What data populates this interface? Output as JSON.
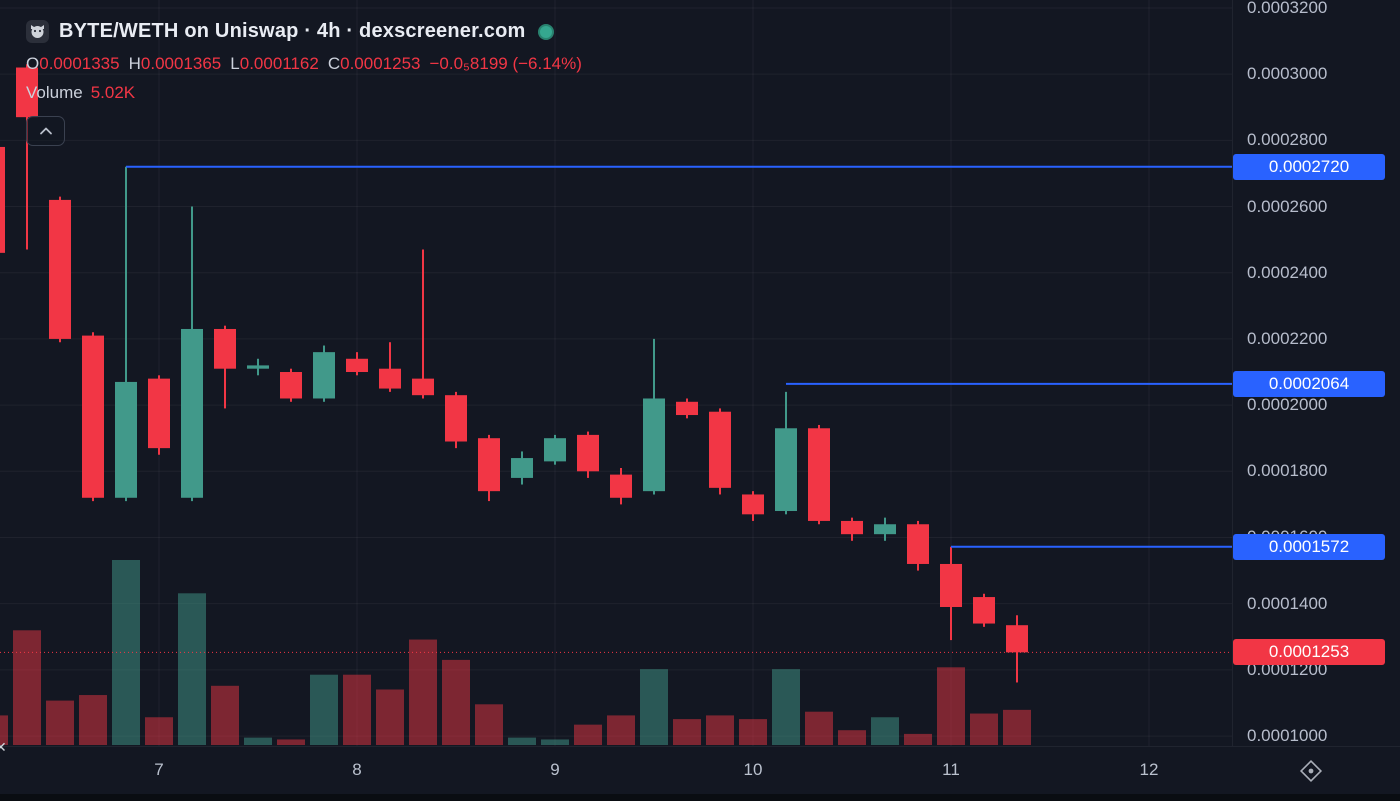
{
  "legend": {
    "title": "BYTE/WETH on Uniswap · 4h · dexscreener.com",
    "ohlc": [
      {
        "label": "O",
        "value": "0.0001335"
      },
      {
        "label": "H",
        "value": "0.0001365"
      },
      {
        "label": "L",
        "value": "0.0001162"
      },
      {
        "label": "C",
        "value": "0.0001253"
      }
    ],
    "change": "−0.0₅8199 (−6.14%)",
    "volume_label": "Volume",
    "volume_value": "5.02K"
  },
  "chart_data": {
    "type": "candlestick",
    "title": "BYTE/WETH on Uniswap · 4h · dexscreener.com",
    "ylim": [
      9.7e-05,
      0.0003224
    ],
    "price_ticks": [
      {
        "price": 0.00032,
        "label": "0.0003200"
      },
      {
        "price": 0.0003,
        "label": "0.0003000"
      },
      {
        "price": 0.00028,
        "label": "0.0002800"
      },
      {
        "price": 0.00026,
        "label": "0.0002600"
      },
      {
        "price": 0.00024,
        "label": "0.0002400"
      },
      {
        "price": 0.00022,
        "label": "0.0002200"
      },
      {
        "price": 0.0002,
        "label": "0.0002000"
      },
      {
        "price": 0.00018,
        "label": "0.0001800"
      },
      {
        "price": 0.00016,
        "label": "0.0001600"
      },
      {
        "price": 0.00014,
        "label": "0.0001400"
      },
      {
        "price": 0.00012,
        "label": "0.0001200"
      },
      {
        "price": 0.0001,
        "label": "0.0001000"
      }
    ],
    "time_ticks": [
      {
        "index": 5,
        "label": "7"
      },
      {
        "index": 11,
        "label": "8"
      },
      {
        "index": 17,
        "label": "9"
      },
      {
        "index": 23,
        "label": "10"
      },
      {
        "index": 29,
        "label": "11"
      },
      {
        "index": 35,
        "label": "12"
      }
    ],
    "candles": [
      {
        "o": 0.000278,
        "h": 0.00028,
        "l": 0.000245,
        "c": 0.000246
      },
      {
        "o": 0.000302,
        "h": 0.000303,
        "l": 0.000247,
        "c": 0.000287
      },
      {
        "o": 0.000262,
        "h": 0.000263,
        "l": 0.000219,
        "c": 0.00022
      },
      {
        "o": 0.000221,
        "h": 0.000222,
        "l": 0.000171,
        "c": 0.000172
      },
      {
        "o": 0.000172,
        "h": 0.000272,
        "l": 0.000171,
        "c": 0.000207
      },
      {
        "o": 0.000208,
        "h": 0.000209,
        "l": 0.000185,
        "c": 0.000187
      },
      {
        "o": 0.000172,
        "h": 0.00026,
        "l": 0.000171,
        "c": 0.000223
      },
      {
        "o": 0.000223,
        "h": 0.000224,
        "l": 0.000199,
        "c": 0.000211
      },
      {
        "o": 0.000211,
        "h": 0.000214,
        "l": 0.000209,
        "c": 0.000212
      },
      {
        "o": 0.00021,
        "h": 0.000211,
        "l": 0.000201,
        "c": 0.000202
      },
      {
        "o": 0.000202,
        "h": 0.000218,
        "l": 0.000201,
        "c": 0.000216
      },
      {
        "o": 0.000214,
        "h": 0.000216,
        "l": 0.000209,
        "c": 0.00021
      },
      {
        "o": 0.000211,
        "h": 0.000219,
        "l": 0.000204,
        "c": 0.000205
      },
      {
        "o": 0.000208,
        "h": 0.000247,
        "l": 0.000202,
        "c": 0.000203
      },
      {
        "o": 0.000203,
        "h": 0.000204,
        "l": 0.000187,
        "c": 0.000189
      },
      {
        "o": 0.00019,
        "h": 0.000191,
        "l": 0.000171,
        "c": 0.000174
      },
      {
        "o": 0.000178,
        "h": 0.000186,
        "l": 0.000176,
        "c": 0.000184
      },
      {
        "o": 0.000183,
        "h": 0.000191,
        "l": 0.000182,
        "c": 0.00019
      },
      {
        "o": 0.000191,
        "h": 0.000192,
        "l": 0.000178,
        "c": 0.00018
      },
      {
        "o": 0.000179,
        "h": 0.000181,
        "l": 0.00017,
        "c": 0.000172
      },
      {
        "o": 0.000174,
        "h": 0.00022,
        "l": 0.000173,
        "c": 0.000202
      },
      {
        "o": 0.000201,
        "h": 0.000202,
        "l": 0.000196,
        "c": 0.000197
      },
      {
        "o": 0.000198,
        "h": 0.000199,
        "l": 0.000173,
        "c": 0.000175
      },
      {
        "o": 0.000173,
        "h": 0.000174,
        "l": 0.000165,
        "c": 0.000167
      },
      {
        "o": 0.000168,
        "h": 0.000204,
        "l": 0.000167,
        "c": 0.000193
      },
      {
        "o": 0.000193,
        "h": 0.000194,
        "l": 0.000164,
        "c": 0.000165
      },
      {
        "o": 0.000165,
        "h": 0.000166,
        "l": 0.000159,
        "c": 0.000161
      },
      {
        "o": 0.000161,
        "h": 0.000166,
        "l": 0.000159,
        "c": 0.000164
      },
      {
        "o": 0.000164,
        "h": 0.000165,
        "l": 0.00015,
        "c": 0.000152
      },
      {
        "o": 0.000152,
        "h": 0.0001572,
        "l": 0.000129,
        "c": 0.000139
      },
      {
        "o": 0.000142,
        "h": 0.000143,
        "l": 0.000133,
        "c": 0.000134
      },
      {
        "o": 0.0001335,
        "h": 0.0001365,
        "l": 0.0001162,
        "c": 0.0001253
      }
    ],
    "volumes": [
      16,
      62,
      24,
      27,
      100,
      15,
      82,
      32,
      4,
      3,
      38,
      38,
      30,
      57,
      46,
      22,
      4,
      3,
      11,
      16,
      41,
      14,
      16,
      14,
      41,
      18,
      8,
      15,
      6,
      42,
      17,
      19
    ],
    "price_lines": [
      {
        "price": 0.000272,
        "label": "0.0002720",
        "start_index": 4
      },
      {
        "price": 0.0002064,
        "label": "0.0002064",
        "start_index": 24
      },
      {
        "price": 0.0001572,
        "label": "0.0001572",
        "start_index": 29
      }
    ],
    "last_price": {
      "price": 0.0001253,
      "label": "0.0001253"
    },
    "colors": {
      "up": "#41998a",
      "down": "#f23645",
      "vol_up": "rgba(65,153,138,0.5)",
      "vol_down": "rgba(242,54,69,0.48)",
      "line": "#2962ff",
      "last": "#f23645",
      "grid": "rgba(255,255,255,0.05)"
    }
  }
}
